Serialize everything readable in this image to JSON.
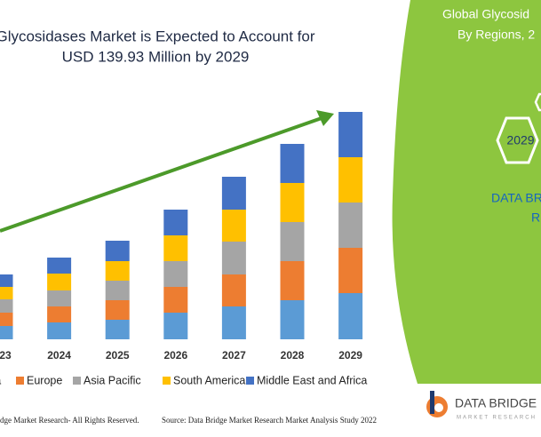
{
  "chart_data": {
    "type": "bar",
    "stacked": true,
    "title": [
      "Glycosidases Market is Expected to Account for",
      "USD 139.93 Million by 2029"
    ],
    "categories": [
      "23",
      "2024",
      "2025",
      "2026",
      "2027",
      "2028",
      "2029"
    ],
    "series": [
      {
        "name": "ca",
        "color": "#5b9bd5",
        "values": [
          15,
          19,
          22,
          30,
          37,
          44,
          52
        ]
      },
      {
        "name": "Europe",
        "color": "#ed7d31",
        "values": [
          15,
          18,
          22,
          29,
          36,
          44,
          51
        ]
      },
      {
        "name": "Asia Pacific",
        "color": "#a5a5a5",
        "values": [
          15,
          18,
          22,
          29,
          37,
          44,
          51
        ]
      },
      {
        "name": "South America",
        "color": "#ffc000",
        "values": [
          14,
          19,
          22,
          29,
          36,
          44,
          51
        ]
      },
      {
        "name": "Middle East and Africa",
        "color": "#4472c4",
        "values": [
          14,
          18,
          23,
          29,
          37,
          44,
          51
        ]
      }
    ],
    "ylim": [
      0,
      256
    ]
  },
  "panel": {
    "title": [
      "Global Glycosid",
      "By Regions, 2"
    ],
    "year": "2029",
    "brand": [
      "DATA BR",
      "R"
    ]
  },
  "footer": {
    "rights": "dge Market Research- All Rights Reserved.",
    "source": "Source: Data Bridge Market Research Market Analysis Study 2022"
  },
  "logo": {
    "name": "DATA BRIDGE",
    "tagline": "MARKET RESEARCH"
  }
}
